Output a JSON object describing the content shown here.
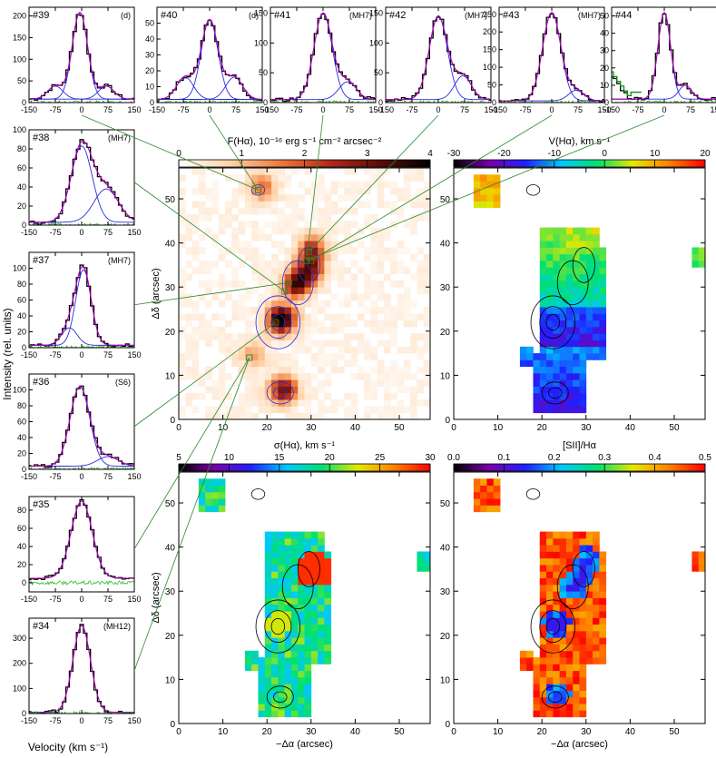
{
  "figure": {
    "ylabel_global": "Intensity (rel. units)",
    "xlabel_global": "Velocity (km s⁻¹)"
  },
  "chart_data": [
    {
      "type": "line",
      "id": "#39",
      "tag": "(d)",
      "xlim": [
        -150,
        150
      ],
      "ylim": [
        0,
        220
      ],
      "xticks": [
        -150,
        -75,
        0,
        75,
        150
      ],
      "yticks": [
        0,
        50,
        100,
        150,
        200
      ],
      "components": [
        {
          "amp": 200,
          "center": -5,
          "sigma": 22
        },
        {
          "amp": 30,
          "center": -75,
          "sigma": 22
        },
        {
          "amp": 30,
          "center": 70,
          "sigma": 22
        }
      ],
      "baseline": 8
    },
    {
      "type": "line",
      "id": "#40",
      "tag": "(d)",
      "xlim": [
        -150,
        150
      ],
      "ylim": [
        0,
        60
      ],
      "xticks": [
        -150,
        -75,
        0,
        75,
        150
      ],
      "yticks": [
        0,
        10,
        20,
        30,
        40,
        50
      ],
      "components": [
        {
          "amp": 50,
          "center": 0,
          "sigma": 24
        },
        {
          "amp": 14,
          "center": -70,
          "sigma": 24
        },
        {
          "amp": 14,
          "center": 70,
          "sigma": 24
        }
      ],
      "baseline": 2
    },
    {
      "type": "line",
      "id": "#41",
      "tag": "(MH7)",
      "xlim": [
        -150,
        150
      ],
      "ylim": [
        0,
        160
      ],
      "xticks": [
        -150,
        -75,
        0,
        75,
        150
      ],
      "yticks": [
        0,
        50,
        100,
        150
      ],
      "components": [
        {
          "amp": 145,
          "center": 0,
          "sigma": 26
        },
        {
          "amp": 30,
          "center": 70,
          "sigma": 25
        }
      ],
      "baseline": 5
    },
    {
      "type": "line",
      "id": "#42",
      "tag": "(MH7)",
      "xlim": [
        -150,
        150
      ],
      "ylim": [
        0,
        160
      ],
      "xticks": [
        -150,
        -75,
        0,
        75,
        150
      ],
      "yticks": [
        0,
        50,
        100,
        150
      ],
      "components": [
        {
          "amp": 140,
          "center": 0,
          "sigma": 26
        },
        {
          "amp": 40,
          "center": 70,
          "sigma": 24
        }
      ],
      "baseline": 5
    },
    {
      "type": "line",
      "id": "#43",
      "tag": "(MH7)",
      "xlim": [
        -150,
        150
      ],
      "ylim": [
        0,
        270
      ],
      "xticks": [
        -150,
        -75,
        0,
        75,
        150
      ],
      "yticks": [
        0,
        50,
        100,
        150,
        200,
        250
      ],
      "components": [
        {
          "amp": 250,
          "center": 0,
          "sigma": 26
        },
        {
          "amp": 30,
          "center": 70,
          "sigma": 22
        }
      ],
      "baseline": 5
    },
    {
      "type": "line",
      "id": "#44",
      "tag": "",
      "xlim": [
        -150,
        150
      ],
      "ylim": [
        0,
        55
      ],
      "xticks": [
        -150,
        -75,
        0,
        75,
        150
      ],
      "yticks": [
        0,
        10,
        20,
        30,
        40,
        50
      ],
      "components": [
        {
          "amp": 50,
          "center": 0,
          "sigma": 18
        },
        {
          "amp": 8,
          "center": 60,
          "sigma": 18
        }
      ],
      "baseline": 2,
      "wing": true
    },
    {
      "type": "line",
      "id": "#38",
      "tag": "(MH7)",
      "xlim": [
        -150,
        150
      ],
      "ylim": [
        0,
        100
      ],
      "xticks": [
        -150,
        -75,
        0,
        75,
        150
      ],
      "yticks": [
        0,
        20,
        40,
        60,
        80,
        100
      ],
      "components": [
        {
          "amp": 80,
          "center": 0,
          "sigma": 30
        },
        {
          "amp": 35,
          "center": 70,
          "sigma": 35
        }
      ],
      "baseline": 3
    },
    {
      "type": "line",
      "id": "#37",
      "tag": "(MH7)",
      "xlim": [
        -150,
        150
      ],
      "ylim": [
        0,
        120
      ],
      "xticks": [
        -150,
        -75,
        0,
        75,
        150
      ],
      "yticks": [
        0,
        20,
        40,
        60,
        80,
        100
      ],
      "components": [
        {
          "amp": 95,
          "center": 5,
          "sigma": 22
        },
        {
          "amp": 22,
          "center": -35,
          "sigma": 22
        }
      ],
      "baseline": 3
    },
    {
      "type": "line",
      "id": "#36",
      "tag": "(S6)",
      "xlim": [
        -150,
        150
      ],
      "ylim": [
        0,
        120
      ],
      "xticks": [
        -150,
        -75,
        0,
        75,
        150
      ],
      "yticks": [
        0,
        20,
        40,
        60,
        80,
        100
      ],
      "components": [
        {
          "amp": 100,
          "center": -5,
          "sigma": 28
        },
        {
          "amp": 12,
          "center": 75,
          "sigma": 30
        }
      ],
      "baseline": 4
    },
    {
      "type": "line",
      "id": "#35",
      "tag": "",
      "xlim": [
        -150,
        150
      ],
      "ylim": [
        -10,
        95
      ],
      "xticks": [
        -150,
        -75,
        0,
        75,
        150
      ],
      "yticks": [
        0,
        20,
        40,
        60,
        80
      ],
      "components": [
        {
          "amp": 85,
          "center": 0,
          "sigma": 30
        }
      ],
      "baseline": 5
    },
    {
      "type": "line",
      "id": "#34",
      "tag": "(MH12)",
      "xlim": [
        -150,
        150
      ],
      "ylim": [
        0,
        380
      ],
      "xticks": [
        -150,
        -75,
        0,
        75,
        150
      ],
      "yticks": [
        0,
        100,
        200,
        300
      ],
      "components": [
        {
          "amp": 345,
          "center": 0,
          "sigma": 25
        }
      ],
      "baseline": 5
    },
    {
      "type": "heatmap",
      "id": "flux",
      "title": "F(Hα), 10⁻¹⁶ erg s⁻¹ cm⁻² arcsec⁻²",
      "colorbar": {
        "min": 0,
        "max": 4,
        "ticks": [
          0,
          1,
          2,
          3,
          4
        ],
        "stops": [
          "#ffffff",
          "#ffd2a8",
          "#ef7c3c",
          "#b22a1a",
          "#5c0d06",
          "#000000"
        ]
      },
      "xlim": [
        0,
        57
      ],
      "ylim": [
        0,
        57
      ],
      "xticks": [
        0,
        10,
        20,
        30,
        40,
        50
      ],
      "yticks": [
        0,
        10,
        20,
        30,
        40,
        50
      ],
      "ylabel": "Δδ (arcsec)"
    },
    {
      "type": "heatmap",
      "id": "velocity",
      "title": "V(Hα), km s⁻¹",
      "colorbar": {
        "min": -30,
        "max": 20,
        "ticks": [
          -30,
          -20,
          -10,
          0,
          10,
          20
        ],
        "stops": [
          "#000000",
          "#7a00a8",
          "#2020ff",
          "#00c8ff",
          "#00e070",
          "#e8e800",
          "#ff8000",
          "#ff0000"
        ]
      },
      "xlim": [
        0,
        57
      ],
      "ylim": [
        0,
        57
      ],
      "xticks": [
        0,
        10,
        20,
        30,
        40,
        50
      ],
      "yticks": [
        0,
        10,
        20,
        30,
        40,
        50
      ]
    },
    {
      "type": "heatmap",
      "id": "dispersion",
      "title": "σ(Hα), km s⁻¹",
      "colorbar": {
        "min": 5,
        "max": 30,
        "ticks": [
          5,
          10,
          15,
          20,
          25,
          30
        ],
        "stops": [
          "#000000",
          "#7a00a8",
          "#2020ff",
          "#00c8ff",
          "#00e070",
          "#e8e800",
          "#ff8000",
          "#ff0000"
        ]
      },
      "xlim": [
        0,
        57
      ],
      "ylim": [
        0,
        57
      ],
      "xticks": [
        0,
        10,
        20,
        30,
        40,
        50
      ],
      "yticks": [
        0,
        10,
        20,
        30,
        40,
        50
      ],
      "xlabel": "−Δα (arcsec)",
      "ylabel": "Δδ (arcsec)"
    },
    {
      "type": "heatmap",
      "id": "sii",
      "title": "[SII]/Hα",
      "colorbar": {
        "min": 0,
        "max": 0.5,
        "ticks": [
          "0.0",
          "0.1",
          "0.2",
          "0.3",
          "0.4",
          "0.5"
        ],
        "stops": [
          "#000000",
          "#7a00a8",
          "#2020ff",
          "#00c8ff",
          "#00e070",
          "#e8e800",
          "#ff8000",
          "#ff0000"
        ]
      },
      "xlim": [
        0,
        57
      ],
      "ylim": [
        0,
        57
      ],
      "xticks": [
        0,
        10,
        20,
        30,
        40,
        50
      ],
      "yticks": [
        0,
        10,
        20,
        30,
        40,
        50
      ],
      "xlabel": "−Δα (arcsec)"
    }
  ]
}
